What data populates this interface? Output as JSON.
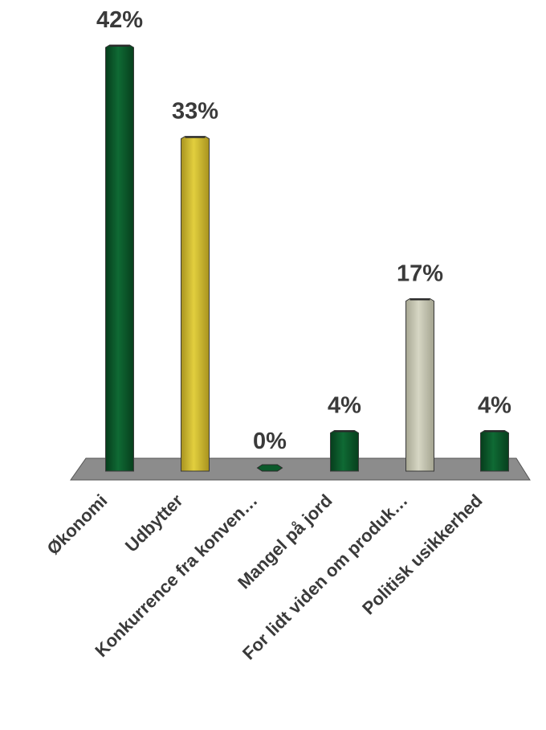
{
  "chart_data": {
    "type": "bar",
    "categories": [
      "Økonomi",
      "Udbytter",
      "Konkurrence fra konven…",
      "Mangel på jord",
      "For lidt viden om produk…",
      "Politisk usikkerhed"
    ],
    "values": [
      42,
      33,
      0,
      4,
      17,
      4
    ],
    "data_labels": [
      "42%",
      "33%",
      "0%",
      "4%",
      "17%",
      "4%"
    ],
    "unit": "%",
    "colors": [
      "#0b5a2b",
      "#d8c430",
      "#0b5a2b",
      "#0b5a2b",
      "#ccccb8",
      "#0b5a2b"
    ],
    "floor_color": "#8c8c8c",
    "title": "",
    "xlabel": "",
    "ylabel": "",
    "ylim": [
      0,
      42
    ],
    "grid": false,
    "legend": "none"
  }
}
